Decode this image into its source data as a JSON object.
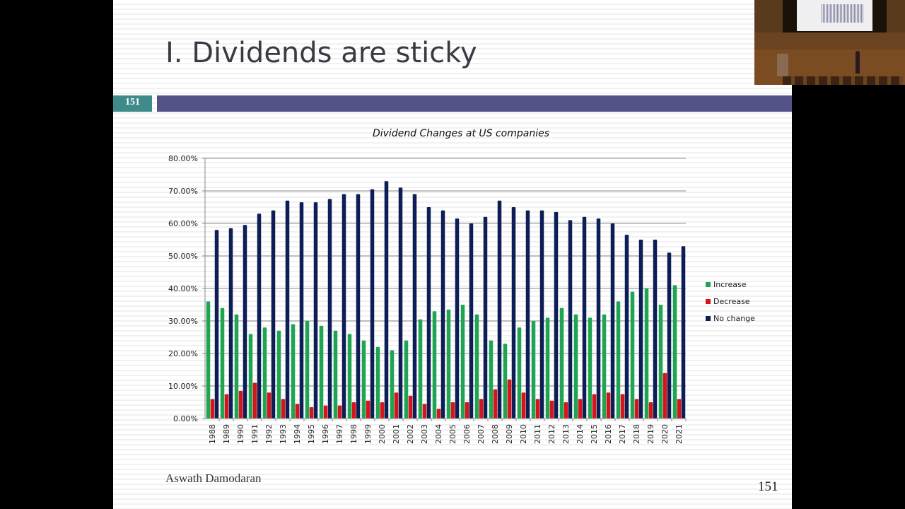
{
  "slide": {
    "title": "I. Dividends are sticky",
    "page_tag": "151",
    "footer_author": "Aswath Damodaran",
    "footer_page": "151",
    "colors": {
      "header_bar": "#545389",
      "page_tag": "#3f8a8a"
    }
  },
  "video_inset": {
    "description_icon": "presenter-video-icon"
  },
  "chart_data": {
    "type": "bar",
    "title": "Dividend Changes at US companies",
    "xlabel": "",
    "ylabel": "",
    "ylim": [
      0,
      0.8
    ],
    "yticks": [
      "0.00%",
      "10.00%",
      "20.00%",
      "30.00%",
      "40.00%",
      "50.00%",
      "60.00%",
      "70.00%",
      "80.00%"
    ],
    "grid": true,
    "legend_position": "right",
    "categories": [
      "1988",
      "1989",
      "1990",
      "1991",
      "1992",
      "1993",
      "1994",
      "1995",
      "1996",
      "1997",
      "1998",
      "1999",
      "2000",
      "2001",
      "2002",
      "2003",
      "2004",
      "2005",
      "2006",
      "2007",
      "2008",
      "2009",
      "2010",
      "2011",
      "2012",
      "2013",
      "2014",
      "2015",
      "2016",
      "2017",
      "2018",
      "2019",
      "2020",
      "2021"
    ],
    "series": [
      {
        "name": "Increase",
        "color": "#1fa552",
        "values": [
          0.36,
          0.34,
          0.32,
          0.26,
          0.28,
          0.27,
          0.29,
          0.3,
          0.285,
          0.27,
          0.26,
          0.24,
          0.22,
          0.21,
          0.24,
          0.305,
          0.33,
          0.335,
          0.35,
          0.32,
          0.24,
          0.23,
          0.28,
          0.3,
          0.31,
          0.34,
          0.32,
          0.31,
          0.32,
          0.36,
          0.39,
          0.4,
          0.35,
          0.41
        ]
      },
      {
        "name": "Decrease",
        "color": "#d6141b",
        "values": [
          0.06,
          0.075,
          0.085,
          0.11,
          0.08,
          0.06,
          0.045,
          0.035,
          0.04,
          0.04,
          0.05,
          0.055,
          0.05,
          0.08,
          0.07,
          0.045,
          0.03,
          0.05,
          0.05,
          0.06,
          0.09,
          0.12,
          0.08,
          0.06,
          0.055,
          0.05,
          0.06,
          0.075,
          0.08,
          0.075,
          0.06,
          0.05,
          0.14,
          0.06
        ]
      },
      {
        "name": "No change",
        "color": "#0c1e55",
        "values": [
          0.58,
          0.585,
          0.595,
          0.63,
          0.64,
          0.67,
          0.665,
          0.665,
          0.675,
          0.69,
          0.69,
          0.705,
          0.73,
          0.71,
          0.69,
          0.65,
          0.64,
          0.615,
          0.6,
          0.62,
          0.67,
          0.65,
          0.64,
          0.64,
          0.635,
          0.61,
          0.62,
          0.615,
          0.6,
          0.565,
          0.55,
          0.55,
          0.51,
          0.53
        ]
      }
    ]
  }
}
